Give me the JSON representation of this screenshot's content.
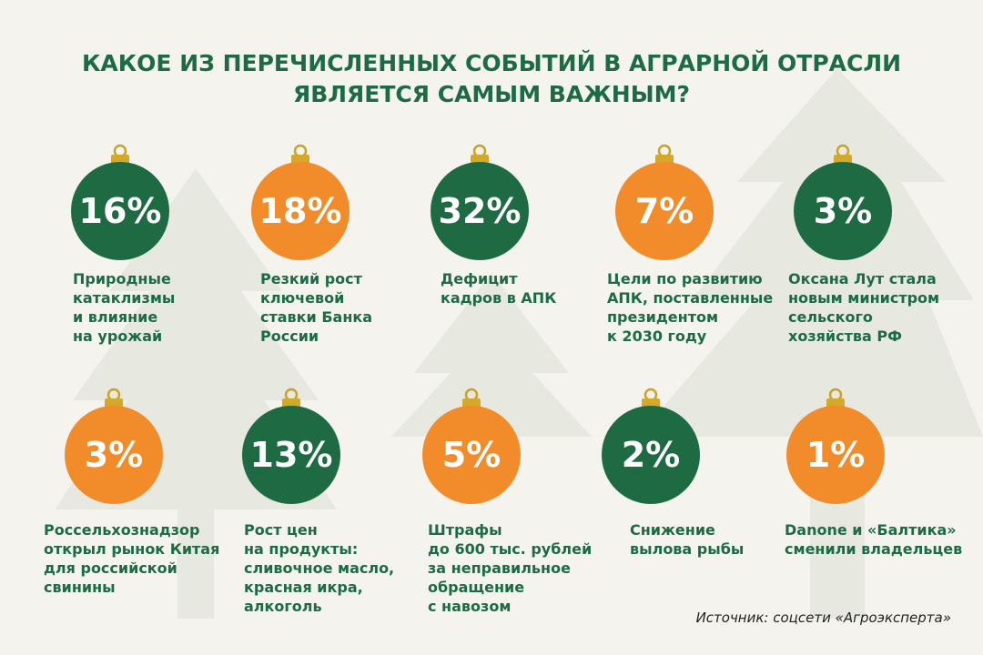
{
  "title": [
    "КАКОЕ ИЗ ПЕРЕЧИСЛЕННЫХ СОБЫТИЙ В АГРАРНОЙ ОТРАСЛИ",
    "ЯВЛЯЕТСЯ САМЫМ ВАЖНЫМ?"
  ],
  "items": [
    {
      "value": "16%",
      "color": "green",
      "lines": [
        "Природные",
        "катаклизмы",
        "и влияние",
        "на урожай"
      ]
    },
    {
      "value": "18%",
      "color": "orange",
      "lines": [
        "Резкий рост",
        "ключевой",
        "ставки Банка",
        "России"
      ]
    },
    {
      "value": "32%",
      "color": "green",
      "lines": [
        "Дефицит",
        "кадров в АПК"
      ]
    },
    {
      "value": "7%",
      "color": "orange",
      "lines": [
        "Цели по развитию",
        "АПК, поставленные",
        "президентом",
        "к 2030 году"
      ]
    },
    {
      "value": "3%",
      "color": "green",
      "lines": [
        "Оксана Лут стала",
        "новым министром",
        "сельского",
        "хозяйства РФ"
      ]
    },
    {
      "value": "3%",
      "color": "orange",
      "lines": [
        "Россельхознадзор",
        "открыл рынок Китая",
        "для российской",
        "свинины"
      ]
    },
    {
      "value": "13%",
      "color": "green",
      "lines": [
        "Рост цен",
        "на продукты:",
        "сливочное масло,",
        "красная икра,",
        "алкоголь"
      ]
    },
    {
      "value": "5%",
      "color": "orange",
      "lines": [
        "Штрафы",
        "до 600 тыс. рублей",
        "за неправильное",
        "обращение",
        "с навозом"
      ]
    },
    {
      "value": "2%",
      "color": "green",
      "lines": [
        "Снижение",
        "вылова рыбы"
      ]
    },
    {
      "value": "1%",
      "color": "orange",
      "lines": [
        "Danone и «Балтика»",
        "сменили владельцев"
      ]
    }
  ],
  "source": "Источник: соцсети «Агроэксперта»"
}
